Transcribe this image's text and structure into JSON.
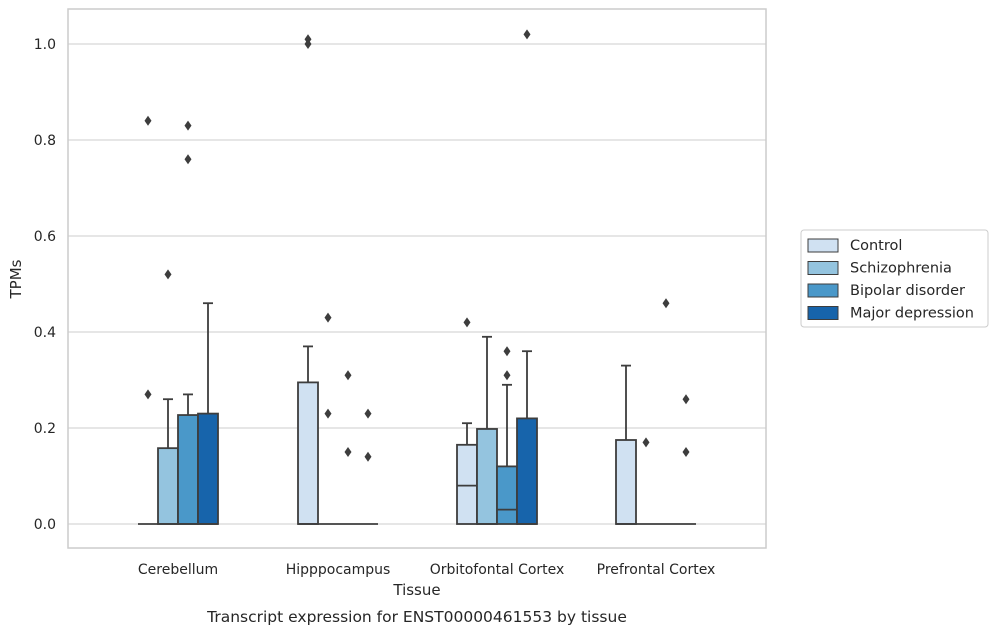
{
  "caption": "Transcript expression for ENST00000461553 by tissue",
  "chart_data": {
    "type": "box",
    "xlabel": "Tissue",
    "ylabel": "TPMs",
    "ylim": [
      -0.05,
      1.07
    ],
    "yticks": [
      0.0,
      0.2,
      0.4,
      0.6,
      0.8,
      1.0
    ],
    "ytick_labels": [
      "0.0",
      "0.2",
      "0.4",
      "0.6",
      "0.8",
      "1.0"
    ],
    "grid": true,
    "legend_position": "right",
    "categories": [
      "Cerebellum",
      "Hipppocampus",
      "Orbitofontal Cortex",
      "Prefrontal Cortex"
    ],
    "series": [
      {
        "name": "Control",
        "color": "#d0e1f2",
        "boxes": [
          {
            "q1": 0,
            "median": 0,
            "q3": 0,
            "whisker_low": 0,
            "whisker_high": 0,
            "outliers": [
              0.27,
              0.84
            ]
          },
          {
            "q1": 0,
            "median": 0,
            "q3": 0.295,
            "whisker_low": 0,
            "whisker_high": 0.37,
            "outliers": [
              1.0,
              1.01
            ]
          },
          {
            "q1": 0,
            "median": 0.08,
            "q3": 0.165,
            "whisker_low": 0,
            "whisker_high": 0.21,
            "outliers": [
              0.42
            ]
          },
          {
            "q1": 0,
            "median": 0,
            "q3": 0.175,
            "whisker_low": 0,
            "whisker_high": 0.33,
            "outliers": []
          }
        ]
      },
      {
        "name": "Schizophrenia",
        "color": "#94c4df",
        "boxes": [
          {
            "q1": 0,
            "median": 0,
            "q3": 0.158,
            "whisker_low": 0,
            "whisker_high": 0.26,
            "outliers": [
              0.52
            ]
          },
          {
            "q1": 0,
            "median": 0,
            "q3": 0,
            "whisker_low": 0,
            "whisker_high": 0,
            "outliers": [
              0.23,
              0.43
            ]
          },
          {
            "q1": 0,
            "median": 0,
            "q3": 0.198,
            "whisker_low": 0,
            "whisker_high": 0.39,
            "outliers": []
          },
          {
            "q1": 0,
            "median": 0,
            "q3": 0,
            "whisker_low": 0,
            "whisker_high": 0,
            "outliers": [
              0.17
            ]
          }
        ]
      },
      {
        "name": "Bipolar disorder",
        "color": "#4a98c9",
        "boxes": [
          {
            "q1": 0,
            "median": 0,
            "q3": 0.227,
            "whisker_low": 0,
            "whisker_high": 0.27,
            "outliers": [
              0.76,
              0.83
            ]
          },
          {
            "q1": 0,
            "median": 0,
            "q3": 0,
            "whisker_low": 0,
            "whisker_high": 0,
            "outliers": [
              0.15,
              0.31
            ]
          },
          {
            "q1": 0,
            "median": 0.03,
            "q3": 0.12,
            "whisker_low": 0,
            "whisker_high": 0.29,
            "outliers": [
              0.31,
              0.36
            ]
          },
          {
            "q1": 0,
            "median": 0,
            "q3": 0,
            "whisker_low": 0,
            "whisker_high": 0,
            "outliers": [
              0.46
            ]
          }
        ]
      },
      {
        "name": "Major depression",
        "color": "#1764ab",
        "boxes": [
          {
            "q1": 0,
            "median": 0,
            "q3": 0.23,
            "whisker_low": 0,
            "whisker_high": 0.46,
            "outliers": []
          },
          {
            "q1": 0,
            "median": 0,
            "q3": 0,
            "whisker_low": 0,
            "whisker_high": 0,
            "outliers": [
              0.14,
              0.23
            ]
          },
          {
            "q1": 0,
            "median": 0,
            "q3": 0.22,
            "whisker_low": 0,
            "whisker_high": 0.36,
            "outliers": [
              1.02
            ]
          },
          {
            "q1": 0,
            "median": 0,
            "q3": 0,
            "whisker_low": 0,
            "whisker_high": 0,
            "outliers": [
              0.15,
              0.26
            ]
          }
        ]
      }
    ]
  }
}
